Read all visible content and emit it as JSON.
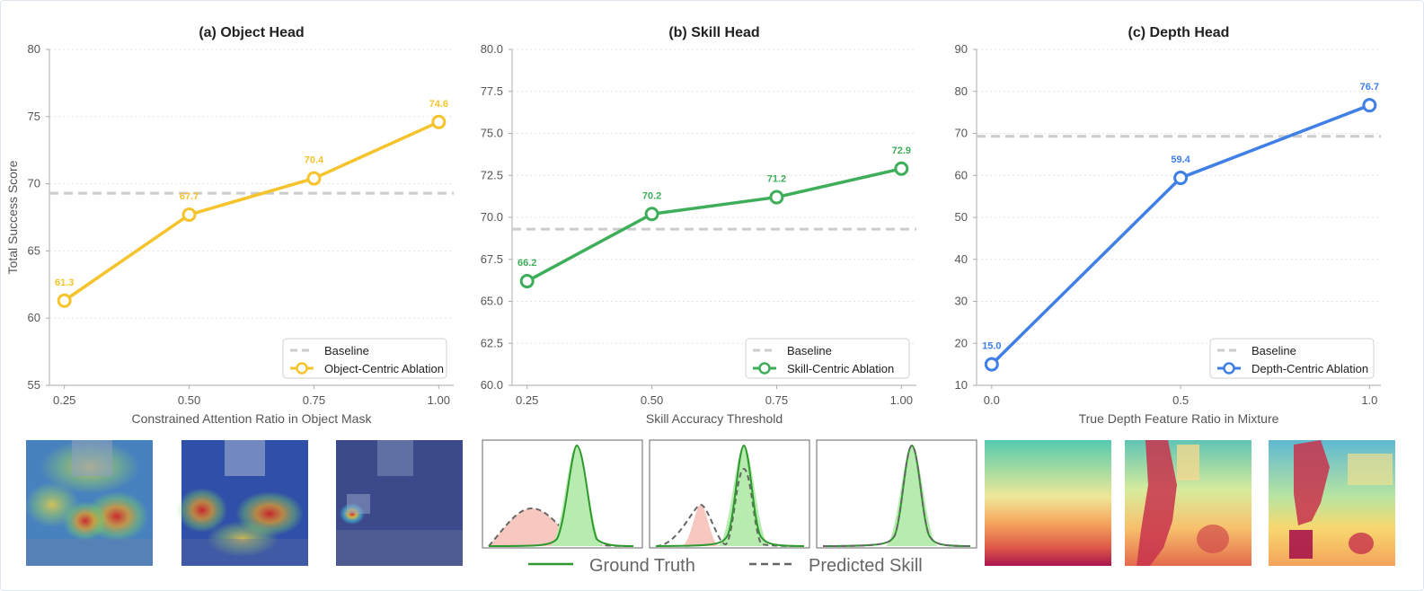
{
  "chart_data": [
    {
      "type": "line",
      "title": "(a) Object Head",
      "xlabel": "Constrained Attention Ratio in Object Mask",
      "ylabel": "Total Success Score",
      "x": [
        0.25,
        0.5,
        0.75,
        1.0
      ],
      "x_ticks": [
        "0.25",
        "0.50",
        "0.75",
        "1.00"
      ],
      "y_ticks": [
        "55",
        "60",
        "65",
        "70",
        "75",
        "80"
      ],
      "ylim": [
        55,
        80
      ],
      "xlim": [
        0.22,
        1.03
      ],
      "grid": true,
      "legend_position": "bottom-right",
      "baseline": {
        "name": "Baseline",
        "value": 69.3,
        "color": "#cccccc"
      },
      "series": [
        {
          "name": "Object-Centric Ablation",
          "values": [
            61.3,
            67.7,
            70.4,
            74.6
          ],
          "labels": [
            "61.3",
            "67.7",
            "70.4",
            "74.6"
          ],
          "color": "#f5c32c"
        }
      ]
    },
    {
      "type": "line",
      "title": "(b) Skill Head",
      "xlabel": "Skill Accuracy Threshold",
      "ylabel": "",
      "x": [
        0.25,
        0.5,
        0.75,
        1.0
      ],
      "x_ticks": [
        "0.25",
        "0.50",
        "0.75",
        "1.00"
      ],
      "y_ticks": [
        "60.0",
        "62.5",
        "65.0",
        "67.5",
        "70.0",
        "72.5",
        "75.0",
        "77.5",
        "80.0"
      ],
      "ylim": [
        60,
        80
      ],
      "xlim": [
        0.22,
        1.03
      ],
      "grid": true,
      "legend_position": "bottom-right",
      "baseline": {
        "name": "Baseline",
        "value": 69.3,
        "color": "#cccccc"
      },
      "series": [
        {
          "name": "Skill-Centric Ablation",
          "values": [
            66.2,
            70.2,
            71.2,
            72.9
          ],
          "labels": [
            "66.2",
            "70.2",
            "71.2",
            "72.9"
          ],
          "color": "#3fae5a"
        }
      ]
    },
    {
      "type": "line",
      "title": "(c) Depth Head",
      "xlabel": "True Depth Feature Ratio in Mixture",
      "ylabel": "",
      "x": [
        0.0,
        0.5,
        1.0
      ],
      "x_ticks": [
        "0.0",
        "0.5",
        "1.0"
      ],
      "y_ticks": [
        "10",
        "20",
        "30",
        "40",
        "50",
        "60",
        "70",
        "80",
        "90"
      ],
      "ylim": [
        10,
        90
      ],
      "xlim": [
        -0.04,
        1.03
      ],
      "grid": true,
      "legend_position": "bottom-right",
      "baseline": {
        "name": "Baseline",
        "value": 69.3,
        "color": "#cccccc"
      },
      "series": [
        {
          "name": "Depth-Centric Ablation",
          "values": [
            15.0,
            59.4,
            76.7
          ],
          "labels": [
            "15.0",
            "59.4",
            "76.7"
          ],
          "color": "#3f7fe6"
        }
      ]
    }
  ],
  "bottom_legend": {
    "ground_truth": "Ground Truth",
    "predicted": "Predicted Skill",
    "gt_color": "#2e9a2e",
    "pred_color": "#666666"
  },
  "thumbnails": {
    "attention_maps": [
      "attention-map",
      "attention-map",
      "attention-map"
    ],
    "depth_maps": [
      "depth-map",
      "depth-map",
      "depth-map"
    ]
  }
}
